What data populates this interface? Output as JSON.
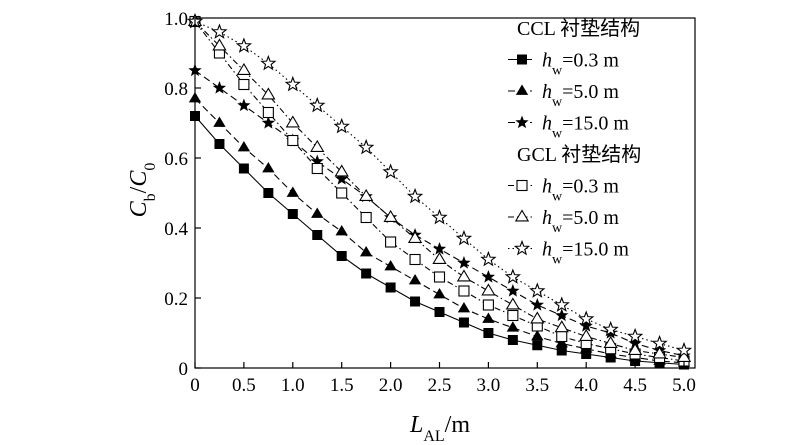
{
  "chart_data": {
    "type": "line",
    "xlabel": {
      "main": "L",
      "sub": "AL",
      "unit": "/m"
    },
    "ylabel": {
      "main": "C",
      "sub1": "b",
      "slash": "/",
      "main2": "C",
      "sub2": "0"
    },
    "xlim": [
      0,
      5.2
    ],
    "ylim": [
      0,
      1.0
    ],
    "xticks": [
      0,
      0.5,
      1.0,
      1.5,
      2.0,
      2.5,
      3.0,
      3.5,
      4.0,
      4.5,
      5.0
    ],
    "xtick_labels": [
      "0",
      "0.5",
      "1.0",
      "1.5",
      "2.0",
      "2.5",
      "3.0",
      "3.5",
      "4.0",
      "4.5",
      "5.0"
    ],
    "yticks": [
      0,
      0.2,
      0.4,
      0.6,
      0.8,
      1.0
    ],
    "ytick_labels": [
      "0",
      "0.2",
      "0.4",
      "0.6",
      "0.8",
      "1.0"
    ],
    "grid": false,
    "legend_position": "top-right",
    "x": [
      0,
      0.25,
      0.5,
      0.75,
      1.0,
      1.25,
      1.5,
      1.75,
      2.0,
      2.25,
      2.5,
      2.75,
      3.0,
      3.25,
      3.5,
      3.75,
      4.0,
      4.25,
      4.5,
      4.75,
      5.0
    ],
    "legend_groups": [
      {
        "title": "CCL 衬垫结构",
        "series_indices": [
          0,
          1,
          2
        ]
      },
      {
        "title": "GCL 衬垫结构",
        "series_indices": [
          3,
          4,
          5
        ]
      }
    ],
    "series": [
      {
        "name": "h_w=0.3 m",
        "h_label": "h",
        "h_sub": "w",
        "h_value": "=0.3 m",
        "group": "CCL",
        "marker": "square-filled",
        "line": "solid",
        "values": [
          0.72,
          0.64,
          0.57,
          0.5,
          0.44,
          0.38,
          0.32,
          0.27,
          0.23,
          0.19,
          0.16,
          0.13,
          0.1,
          0.08,
          0.065,
          0.05,
          0.04,
          0.03,
          0.02,
          0.015,
          0.01
        ]
      },
      {
        "name": "h_w=5.0 m",
        "h_label": "h",
        "h_sub": "w",
        "h_value": "=5.0 m",
        "group": "CCL",
        "marker": "triangle-filled",
        "line": "dashed",
        "values": [
          0.77,
          0.7,
          0.63,
          0.57,
          0.5,
          0.44,
          0.39,
          0.33,
          0.29,
          0.25,
          0.21,
          0.17,
          0.14,
          0.115,
          0.09,
          0.07,
          0.055,
          0.04,
          0.03,
          0.02,
          0.015
        ]
      },
      {
        "name": "h_w=15.0 m",
        "h_label": "h",
        "h_sub": "w",
        "h_value": "=15.0 m",
        "group": "CCL",
        "marker": "star-filled",
        "line": "dashed",
        "values": [
          0.85,
          0.8,
          0.75,
          0.7,
          0.65,
          0.59,
          0.54,
          0.49,
          0.43,
          0.38,
          0.34,
          0.3,
          0.26,
          0.22,
          0.18,
          0.15,
          0.12,
          0.1,
          0.07,
          0.05,
          0.035
        ]
      },
      {
        "name": "h_w=0.3 m",
        "h_label": "h",
        "h_sub": "w",
        "h_value": "=0.3 m",
        "group": "GCL",
        "marker": "square-open",
        "line": "dashdot",
        "values": [
          0.99,
          0.9,
          0.81,
          0.73,
          0.65,
          0.57,
          0.5,
          0.43,
          0.36,
          0.31,
          0.26,
          0.22,
          0.18,
          0.15,
          0.12,
          0.09,
          0.07,
          0.055,
          0.04,
          0.03,
          0.02
        ]
      },
      {
        "name": "h_w=5.0 m",
        "h_label": "h",
        "h_sub": "w",
        "h_value": "=5.0 m",
        "group": "GCL",
        "marker": "triangle-open",
        "line": "dashdot",
        "values": [
          0.99,
          0.92,
          0.85,
          0.78,
          0.7,
          0.63,
          0.56,
          0.49,
          0.43,
          0.37,
          0.31,
          0.26,
          0.22,
          0.18,
          0.14,
          0.115,
          0.09,
          0.07,
          0.05,
          0.04,
          0.03
        ]
      },
      {
        "name": "h_w=15.0 m",
        "h_label": "h",
        "h_sub": "w",
        "h_value": "=15.0 m",
        "group": "GCL",
        "marker": "star-open",
        "line": "dotted",
        "values": [
          0.99,
          0.96,
          0.92,
          0.87,
          0.81,
          0.75,
          0.69,
          0.63,
          0.56,
          0.49,
          0.43,
          0.37,
          0.31,
          0.26,
          0.22,
          0.18,
          0.14,
          0.11,
          0.09,
          0.07,
          0.05
        ]
      }
    ]
  }
}
